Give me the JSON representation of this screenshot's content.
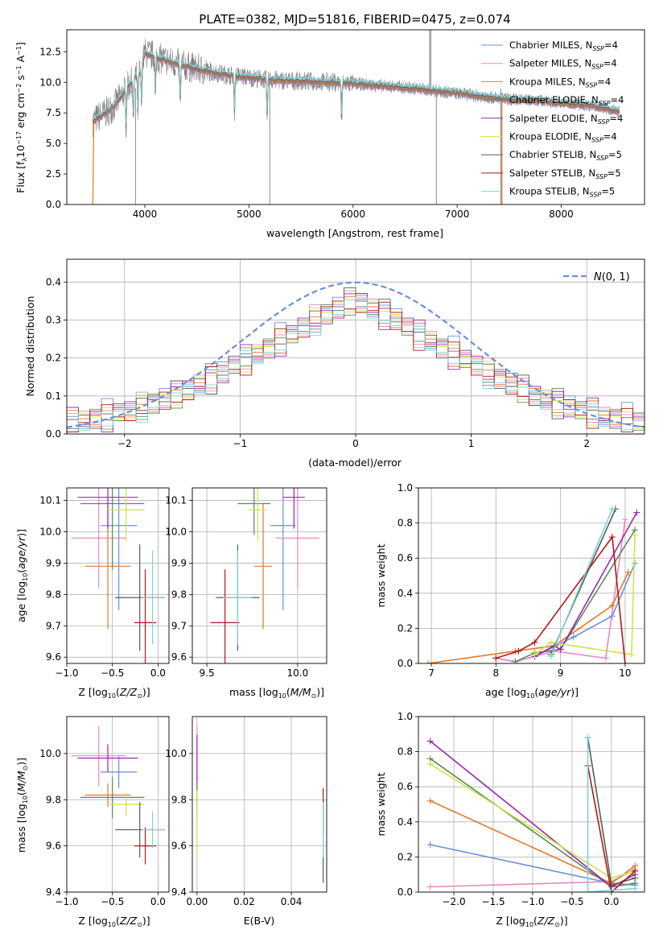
{
  "colors": {
    "chabrier_miles": "#6a8fd8",
    "salpeter_miles": "#e68ac5",
    "kroupa_miles": "#e07a28",
    "chabrier_elodie": "#5c8a5c",
    "salpeter_elodie": "#9a28b0",
    "kroupa_elodie": "#cde44a",
    "chabrier_stelib": "#5a5a5a",
    "salpeter_stelib": "#b01818",
    "kroupa_stelib": "#7fd3d6",
    "data_grey": "#808080",
    "grid": "#b0b0b0"
  },
  "chart_data": [
    {
      "type": "line",
      "title": "PLATE=0382, MJD=51816, FIBERID=0475, z=0.074",
      "xlabel": "wavelength [Angstrom, rest frame]",
      "ylabel": "Flux [f_λ 10^-17 erg cm^-2 s^-1 A^-1]",
      "xlim": [
        3250,
        8800
      ],
      "ylim": [
        0,
        14.3
      ],
      "xticks": [
        4000,
        5000,
        6000,
        7000,
        8000
      ],
      "yticks": [
        0.0,
        2.5,
        5.0,
        7.5,
        10.0,
        12.5
      ],
      "grid": false,
      "legend_position": "top-right",
      "legend": [
        {
          "label": "Chabrier MILES, N",
          "sub": "SSP",
          "tail": "=4"
        },
        {
          "label": "Salpeter MILES, N",
          "sub": "SSP",
          "tail": "=4"
        },
        {
          "label": "Kroupa MILES, N",
          "sub": "SSP",
          "tail": "=4"
        },
        {
          "label": "Chabrier ELODIE, N",
          "sub": "SSP",
          "tail": "=4"
        },
        {
          "label": "Salpeter ELODIE, N",
          "sub": "SSP",
          "tail": "=4"
        },
        {
          "label": "Kroupa ELODIE, N",
          "sub": "SSP",
          "tail": "=4"
        },
        {
          "label": "Chabrier STELIB, N",
          "sub": "SSP",
          "tail": "=5"
        },
        {
          "label": "Salpeter STELIB, N",
          "sub": "SSP",
          "tail": "=5"
        },
        {
          "label": "Kroupa STELIB, N",
          "sub": "SSP",
          "tail": "=5"
        }
      ],
      "spectrum_envelope": {
        "x": [
          3500,
          3700,
          3850,
          3950,
          4000,
          4200,
          4400,
          4600,
          4800,
          5000,
          5200,
          5500,
          5800,
          6000,
          6300,
          6600,
          6900,
          7100,
          7300,
          7500,
          7800,
          8000,
          8300,
          8550
        ],
        "y": [
          6.8,
          8.0,
          9.8,
          10.8,
          12.4,
          11.8,
          11.3,
          10.9,
          10.6,
          10.4,
          10.2,
          10.1,
          10.0,
          9.9,
          9.7,
          9.5,
          9.2,
          9.0,
          8.8,
          8.6,
          8.5,
          8.3,
          8.1,
          7.6
        ],
        "model_start_x": 3500,
        "model_end_x": 8550
      }
    },
    {
      "type": "step",
      "xlabel": "(data-model)/error",
      "ylabel": "Normed distribution",
      "xlim": [
        -2.5,
        2.5
      ],
      "ylim": [
        0,
        0.46
      ],
      "xticks": [
        -2,
        -1,
        0,
        1,
        2
      ],
      "yticks": [
        0.0,
        0.1,
        0.2,
        0.3,
        0.4
      ],
      "grid": true,
      "legend_position": "top-right",
      "gaussian_label": "N(0,1)",
      "bin_width": 0.1,
      "bins_from": -2.5,
      "base_hist": [
        0.03,
        0.035,
        0.04,
        0.045,
        0.055,
        0.06,
        0.07,
        0.08,
        0.09,
        0.1,
        0.115,
        0.13,
        0.145,
        0.16,
        0.18,
        0.195,
        0.21,
        0.225,
        0.245,
        0.26,
        0.28,
        0.3,
        0.315,
        0.33,
        0.345,
        0.36,
        0.37,
        0.38,
        0.39,
        0.395,
        0.4,
        0.4,
        0.395,
        0.39,
        0.385,
        0.375,
        0.365,
        0.355,
        0.345,
        0.33,
        0.315,
        0.3,
        0.285,
        0.27,
        0.25,
        0.235,
        0.215,
        0.2,
        0.185,
        0.17,
        0.155,
        0.14,
        0.125,
        0.11,
        0.1,
        0.09,
        0.08,
        0.07,
        0.06,
        0.055,
        0.045,
        0.04,
        0.035,
        0.03,
        0.03,
        0.025,
        0.025,
        0.022,
        0.02,
        0.018,
        0.015,
        0.015,
        0.012,
        0.012,
        0.01,
        0.01,
        0.009,
        0.008,
        0.008,
        0.007,
        0.006,
        0.006,
        0.005,
        0.005,
        0.004,
        0.004,
        0.004,
        0.003,
        0.003,
        0.003,
        0.003,
        0.002,
        0.002,
        0.002,
        0.002,
        0.002,
        0.002,
        0.002,
        0.002,
        0.002
      ]
    },
    {
      "type": "scatter",
      "xlabel": "Z [log10(Z/Z⊙)]",
      "ylabel": "age [log10(age/yr)]",
      "xlim": [
        -1.0,
        0.12
      ],
      "ylim": [
        9.58,
        10.14
      ],
      "xticks": [
        -1.0,
        -0.5,
        0.0
      ],
      "yticks": [
        9.6,
        9.7,
        9.8,
        9.9,
        10.0,
        10.1
      ],
      "grid": true,
      "points": [
        {
          "c": "chabrier_miles",
          "x": -0.43,
          "y": 10.02,
          "xe": 0.2,
          "ye": 0.27
        },
        {
          "c": "salpeter_miles",
          "x": -0.65,
          "y": 9.98,
          "xe": 0.3,
          "ye": 0.16
        },
        {
          "c": "kroupa_miles",
          "x": -0.55,
          "y": 9.89,
          "xe": 0.25,
          "ye": 0.2
        },
        {
          "c": "chabrier_elodie",
          "x": -0.5,
          "y": 10.09,
          "xe": 0.35,
          "ye": 0.21
        },
        {
          "c": "salpeter_elodie",
          "x": -0.55,
          "y": 10.11,
          "xe": 0.33,
          "ye": 0.1
        },
        {
          "c": "kroupa_elodie",
          "x": -0.35,
          "y": 10.07,
          "xe": 0.2,
          "ye": 0.1
        },
        {
          "c": "chabrier_stelib",
          "x": -0.2,
          "y": 9.79,
          "xe": 0.27,
          "ye": 0.17
        },
        {
          "c": "salpeter_stelib",
          "x": -0.14,
          "y": 9.71,
          "xe": 0.12,
          "ye": 0.17
        },
        {
          "c": "kroupa_stelib",
          "x": -0.06,
          "y": 9.79,
          "xe": 0.12,
          "ye": 0.15
        }
      ]
    },
    {
      "type": "scatter",
      "xlabel": "mass [log10(M/M⊙)]",
      "ylabel": "",
      "xlim": [
        9.42,
        10.16
      ],
      "ylim": [
        9.58,
        10.14
      ],
      "xticks": [
        9.5,
        10.0
      ],
      "yticks": [
        9.6,
        9.7,
        9.8,
        9.9,
        10.0,
        10.1
      ],
      "grid": true,
      "points": [
        {
          "c": "chabrier_miles",
          "x": 9.92,
          "y": 10.02,
          "xe": 0.07,
          "ye": 0.27
        },
        {
          "c": "salpeter_miles",
          "x": 10.0,
          "y": 9.98,
          "xe": 0.12,
          "ye": 0.16
        },
        {
          "c": "kroupa_miles",
          "x": 9.81,
          "y": 9.89,
          "xe": 0.05,
          "ye": 0.2
        },
        {
          "c": "chabrier_elodie",
          "x": 9.76,
          "y": 10.09,
          "xe": 0.09,
          "ye": 0.1
        },
        {
          "c": "salpeter_elodie",
          "x": 9.98,
          "y": 10.11,
          "xe": 0.06,
          "ye": 0.1
        },
        {
          "c": "kroupa_elodie",
          "x": 9.78,
          "y": 10.07,
          "xe": 0.05,
          "ye": 0.1
        },
        {
          "c": "chabrier_stelib",
          "x": 9.67,
          "y": 9.79,
          "xe": 0.12,
          "ye": 0.17
        },
        {
          "c": "salpeter_stelib",
          "x": 9.6,
          "y": 9.71,
          "xe": 0.08,
          "ye": 0.17
        },
        {
          "c": "kroupa_stelib",
          "x": 9.67,
          "y": 9.79,
          "xe": 0.08,
          "ye": 0.15
        }
      ]
    },
    {
      "type": "line",
      "xlabel": "age [log10(age/yr)]",
      "ylabel": "mass weight",
      "xlim": [
        6.8,
        10.3
      ],
      "ylim": [
        0,
        1.0
      ],
      "xticks": [
        7,
        8,
        9,
        10
      ],
      "yticks": [
        0.0,
        0.2,
        0.4,
        0.6,
        0.8,
        1.0
      ],
      "grid": true,
      "series": [
        {
          "c": "chabrier_miles",
          "x": [
            8.0,
            8.3,
            8.6,
            9.2,
            9.8,
            10.15
          ],
          "y": [
            0.03,
            0.01,
            0.04,
            0.15,
            0.27,
            0.57
          ]
        },
        {
          "c": "salpeter_miles",
          "x": [
            8.0,
            8.3,
            8.9,
            9.7,
            10.0
          ],
          "y": [
            0.03,
            0.01,
            0.07,
            0.03,
            0.82
          ]
        },
        {
          "c": "kroupa_miles",
          "x": [
            6.95,
            8.3,
            8.9,
            9.8,
            10.05
          ],
          "y": [
            0.0,
            0.07,
            0.1,
            0.33,
            0.52
          ]
        },
        {
          "c": "chabrier_elodie",
          "x": [
            8.3,
            8.6,
            9.0,
            10.15
          ],
          "y": [
            0.01,
            0.06,
            0.08,
            0.76
          ]
        },
        {
          "c": "salpeter_elodie",
          "x": [
            8.6,
            8.9,
            9.0,
            10.18
          ],
          "y": [
            0.04,
            0.1,
            0.08,
            0.86
          ]
        },
        {
          "c": "kroupa_elodie",
          "x": [
            8.6,
            8.85,
            10.1,
            10.15
          ],
          "y": [
            0.05,
            0.12,
            0.05,
            0.73
          ]
        },
        {
          "c": "chabrier_stelib",
          "x": [
            8.85,
            9.85
          ],
          "y": [
            0.05,
            0.88
          ]
        },
        {
          "c": "salpeter_stelib",
          "x": [
            8.0,
            8.35,
            8.6,
            9.8,
            10.0
          ],
          "y": [
            0.03,
            0.07,
            0.12,
            0.72,
            0.0
          ]
        },
        {
          "c": "kroupa_stelib",
          "x": [
            8.85,
            9.8
          ],
          "y": [
            0.04,
            0.88
          ]
        }
      ]
    },
    {
      "type": "scatter",
      "xlabel": "Z [log10(Z/Z⊙)]",
      "ylabel": "mass [log10(M/M⊙)]",
      "xlim": [
        -1.0,
        0.12
      ],
      "ylim": [
        9.4,
        10.16
      ],
      "xticks": [
        -1.0,
        -0.5,
        0.0
      ],
      "yticks": [
        9.4,
        9.6,
        9.8,
        10.0
      ],
      "grid": true,
      "points": [
        {
          "c": "chabrier_miles",
          "x": -0.43,
          "y": 9.92,
          "xe": 0.2,
          "ye": 0.07
        },
        {
          "c": "salpeter_miles",
          "x": -0.65,
          "y": 9.99,
          "xe": 0.3,
          "ye": 0.13
        },
        {
          "c": "kroupa_miles",
          "x": -0.55,
          "y": 9.82,
          "xe": 0.25,
          "ye": 0.05
        },
        {
          "c": "chabrier_elodie",
          "x": -0.5,
          "y": 9.81,
          "xe": 0.35,
          "ye": 0.09
        },
        {
          "c": "salpeter_elodie",
          "x": -0.55,
          "y": 9.98,
          "xe": 0.33,
          "ye": 0.06
        },
        {
          "c": "kroupa_elodie",
          "x": -0.35,
          "y": 9.78,
          "xe": 0.2,
          "ye": 0.05
        },
        {
          "c": "chabrier_stelib",
          "x": -0.2,
          "y": 9.67,
          "xe": 0.27,
          "ye": 0.12
        },
        {
          "c": "salpeter_stelib",
          "x": -0.14,
          "y": 9.6,
          "xe": 0.12,
          "ye": 0.08
        },
        {
          "c": "kroupa_stelib",
          "x": -0.06,
          "y": 9.67,
          "xe": 0.12,
          "ye": 0.08
        }
      ]
    },
    {
      "type": "scatter",
      "xlabel": "E(B-V)",
      "ylabel": "",
      "xlim": [
        -0.002,
        0.055
      ],
      "ylim": [
        9.4,
        10.16
      ],
      "xticks": [
        0.0,
        0.02,
        0.04
      ],
      "yticks": [
        9.4,
        9.6,
        9.8,
        10.0
      ],
      "grid": true,
      "points": [
        {
          "c": "chabrier_miles",
          "x": 0.0,
          "y": 9.92,
          "xe": 0.0,
          "ye": 0.07
        },
        {
          "c": "salpeter_miles",
          "x": 0.0,
          "y": 9.99,
          "xe": 0.0,
          "ye": 0.13
        },
        {
          "c": "kroupa_miles",
          "x": 0.0,
          "y": 9.82,
          "xe": 0.0,
          "ye": 0.05
        },
        {
          "c": "chabrier_elodie",
          "x": 0.0,
          "y": 9.81,
          "xe": 0.0,
          "ye": 0.09
        },
        {
          "c": "salpeter_elodie",
          "x": 0.0,
          "y": 9.98,
          "xe": 0.0,
          "ye": 0.1
        },
        {
          "c": "kroupa_elodie",
          "x": 0.0,
          "y": 9.7,
          "xe": 0.0,
          "ye": 0.14
        },
        {
          "c": "chabrier_stelib",
          "x": 0.0535,
          "y": 9.62,
          "xe": 0.0,
          "ye": 0.18
        },
        {
          "c": "salpeter_stelib",
          "x": 0.0535,
          "y": 9.75,
          "xe": 0.0,
          "ye": 0.1
        },
        {
          "c": "kroupa_stelib",
          "x": 0.0535,
          "y": 9.67,
          "xe": 0.0,
          "ye": 0.12
        }
      ]
    },
    {
      "type": "line",
      "xlabel": "Z [log10(Z/Z⊙)]",
      "ylabel": "mass weight",
      "xlim": [
        -2.45,
        0.42
      ],
      "ylim": [
        0,
        1.0
      ],
      "xticks": [
        -2.0,
        -1.5,
        -1.0,
        -0.5,
        0.0
      ],
      "yticks": [
        0.0,
        0.2,
        0.4,
        0.6,
        0.8,
        1.0
      ],
      "grid": true,
      "series": [
        {
          "c": "chabrier_miles",
          "x": [
            -2.3,
            0.0,
            0.3
          ],
          "y": [
            0.27,
            0.05,
            0.04
          ]
        },
        {
          "c": "salpeter_miles",
          "x": [
            -2.3,
            0.0,
            0.3
          ],
          "y": [
            0.03,
            0.06,
            0.13
          ]
        },
        {
          "c": "kroupa_miles",
          "x": [
            -2.3,
            0.0,
            0.3
          ],
          "y": [
            0.52,
            0.05,
            0.15
          ]
        },
        {
          "c": "chabrier_elodie",
          "x": [
            -2.3,
            0.0,
            0.3
          ],
          "y": [
            0.76,
            0.03,
            0.05
          ]
        },
        {
          "c": "salpeter_elodie",
          "x": [
            -2.3,
            0.0,
            0.3
          ],
          "y": [
            0.86,
            0.03,
            0.1
          ]
        },
        {
          "c": "kroupa_elodie",
          "x": [
            -2.3,
            0.0,
            0.3
          ],
          "y": [
            0.73,
            0.08,
            0.12
          ]
        },
        {
          "c": "chabrier_stelib",
          "x": [
            -0.3,
            0.0,
            0.3
          ],
          "y": [
            0.88,
            0.04,
            0.08
          ]
        },
        {
          "c": "salpeter_stelib",
          "x": [
            -0.3,
            0.0,
            0.3
          ],
          "y": [
            0.72,
            0.0,
            0.12
          ]
        },
        {
          "c": "kroupa_stelib",
          "x": [
            -0.3,
            -0.3,
            0.3
          ],
          "y": [
            0.88,
            0.0,
            0.02
          ]
        }
      ]
    }
  ]
}
